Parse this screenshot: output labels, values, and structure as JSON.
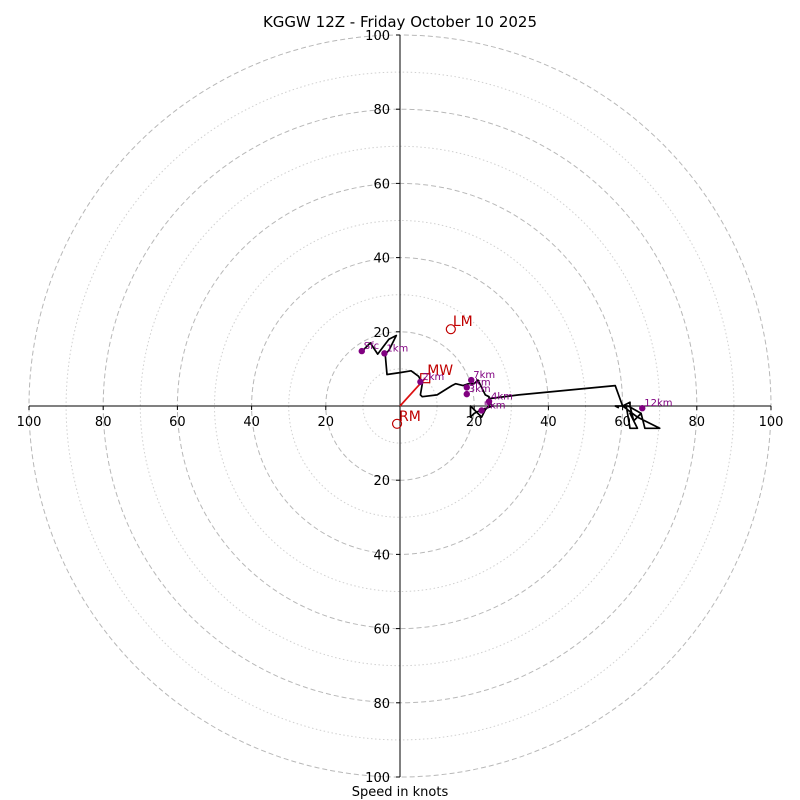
{
  "chart_data": {
    "type": "hodograph",
    "title": "KGGW 12Z - Friday October 10 2025",
    "xlabel": "Speed in knots",
    "ylabel": "",
    "range": [
      -100,
      100
    ],
    "grid": true,
    "major_rings": [
      20,
      40,
      60,
      80,
      100
    ],
    "minor_rings": [
      10,
      30,
      50,
      70,
      90
    ],
    "x_tick_labels": [
      "100",
      "80",
      "60",
      "40",
      "20",
      "20",
      "40",
      "60",
      "80",
      "100"
    ],
    "y_tick_labels": [
      "100",
      "80",
      "60",
      "40",
      "20",
      "20",
      "40",
      "60",
      "80",
      "100"
    ],
    "hodograph": [
      [
        -10,
        15
      ],
      [
        -8,
        17
      ],
      [
        -6,
        14
      ],
      [
        -3,
        18
      ],
      [
        -1,
        19
      ],
      [
        -3,
        15
      ],
      [
        -4,
        14
      ],
      [
        -3.5,
        8.5
      ],
      [
        0,
        9
      ],
      [
        3,
        9.5
      ],
      [
        5,
        8
      ],
      [
        6,
        6
      ],
      [
        5.5,
        3
      ],
      [
        6,
        2.5
      ],
      [
        10,
        3
      ],
      [
        14,
        5.5
      ],
      [
        15,
        6
      ],
      [
        17,
        5.5
      ],
      [
        18.5,
        6
      ],
      [
        20,
        6
      ],
      [
        21,
        7
      ],
      [
        22,
        5
      ],
      [
        23,
        3
      ],
      [
        24,
        2.5
      ],
      [
        24,
        2
      ],
      [
        32,
        3
      ],
      [
        58,
        5.5
      ],
      [
        60,
        0
      ],
      [
        64,
        -3
      ],
      [
        70,
        -6
      ],
      [
        66,
        -6
      ],
      [
        65,
        -2
      ],
      [
        63,
        -4
      ],
      [
        65,
        -2
      ],
      [
        61.5,
        0
      ],
      [
        58,
        0
      ],
      [
        60,
        0
      ],
      [
        62,
        1
      ],
      [
        62,
        0
      ],
      [
        63,
        -4
      ],
      [
        62,
        -2
      ],
      [
        64,
        -6
      ],
      [
        62,
        -6
      ],
      [
        61,
        0
      ],
      [
        58,
        0
      ],
      [
        59,
        -0.5
      ]
    ],
    "tail_trace": [
      [
        25,
        0
      ],
      [
        22,
        -1
      ],
      [
        20,
        -2
      ],
      [
        19,
        -3
      ],
      [
        19,
        -1
      ],
      [
        19,
        0
      ],
      [
        21,
        -2
      ],
      [
        22,
        -3
      ],
      [
        23,
        -1
      ],
      [
        24,
        0
      ],
      [
        24,
        1
      ],
      [
        25,
        0
      ]
    ],
    "height_points": [
      {
        "label": "Sfc",
        "u": -10.3,
        "v": 14.8
      },
      {
        "label": "1km",
        "u": -4.2,
        "v": 14.2
      },
      {
        "label": "2km",
        "u": 5.5,
        "v": 6.5
      },
      {
        "label": "3km",
        "u": 18,
        "v": 3.2
      },
      {
        "label": "4km",
        "u": 24,
        "v": 1.2
      },
      {
        "label": "5km",
        "u": 22,
        "v": -1.2
      },
      {
        "label": "6km",
        "u": 18,
        "v": 5
      },
      {
        "label": "7km",
        "u": 19.2,
        "v": 7
      },
      {
        "label": "12km",
        "u": 65.3,
        "v": -0.6
      }
    ],
    "motions": [
      {
        "label": "LM",
        "u": 13.7,
        "v": 20.7,
        "marker": "circle"
      },
      {
        "label": "MW",
        "u": 6.8,
        "v": 7.5,
        "marker": "square"
      },
      {
        "label": "RM",
        "u": -0.8,
        "v": -4.8,
        "marker": "circle"
      }
    ],
    "mean_wind_line": {
      "from": [
        0,
        0
      ],
      "to": [
        6.8,
        7.5
      ]
    }
  }
}
